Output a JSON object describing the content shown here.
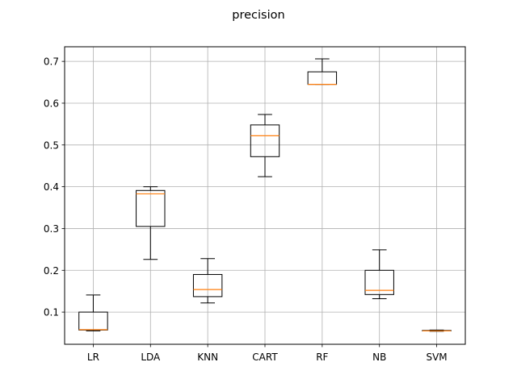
{
  "chart_data": {
    "type": "box",
    "title": "precision",
    "xlabel": "",
    "ylabel": "",
    "ylim": [
      0.023,
      0.735
    ],
    "yticks": [
      "0.1",
      "0.2",
      "0.3",
      "0.4",
      "0.5",
      "0.6",
      "0.7"
    ],
    "grid": true,
    "box_color": "#000000",
    "median_color": "#ff7f0e",
    "grid_color": "#b0b0b0",
    "categories": [
      "LR",
      "LDA",
      "KNN",
      "CART",
      "RF",
      "NB",
      "SVM"
    ],
    "boxes": [
      {
        "label": "LR",
        "whisker_low": 0.055,
        "q1": 0.057,
        "median": 0.058,
        "q3": 0.1,
        "whisker_high": 0.141
      },
      {
        "label": "LDA",
        "whisker_low": 0.226,
        "q1": 0.305,
        "median": 0.383,
        "q3": 0.391,
        "whisker_high": 0.4
      },
      {
        "label": "KNN",
        "whisker_low": 0.122,
        "q1": 0.137,
        "median": 0.154,
        "q3": 0.19,
        "whisker_high": 0.228
      },
      {
        "label": "CART",
        "whisker_low": 0.424,
        "q1": 0.472,
        "median": 0.522,
        "q3": 0.548,
        "whisker_high": 0.573
      },
      {
        "label": "RF",
        "whisker_low": 0.645,
        "q1": 0.645,
        "median": 0.645,
        "q3": 0.675,
        "whisker_high": 0.706
      },
      {
        "label": "NB",
        "whisker_low": 0.132,
        "q1": 0.142,
        "median": 0.152,
        "q3": 0.2,
        "whisker_high": 0.249
      },
      {
        "label": "SVM",
        "whisker_low": 0.054,
        "q1": 0.055,
        "median": 0.055,
        "q3": 0.056,
        "whisker_high": 0.057
      }
    ]
  }
}
